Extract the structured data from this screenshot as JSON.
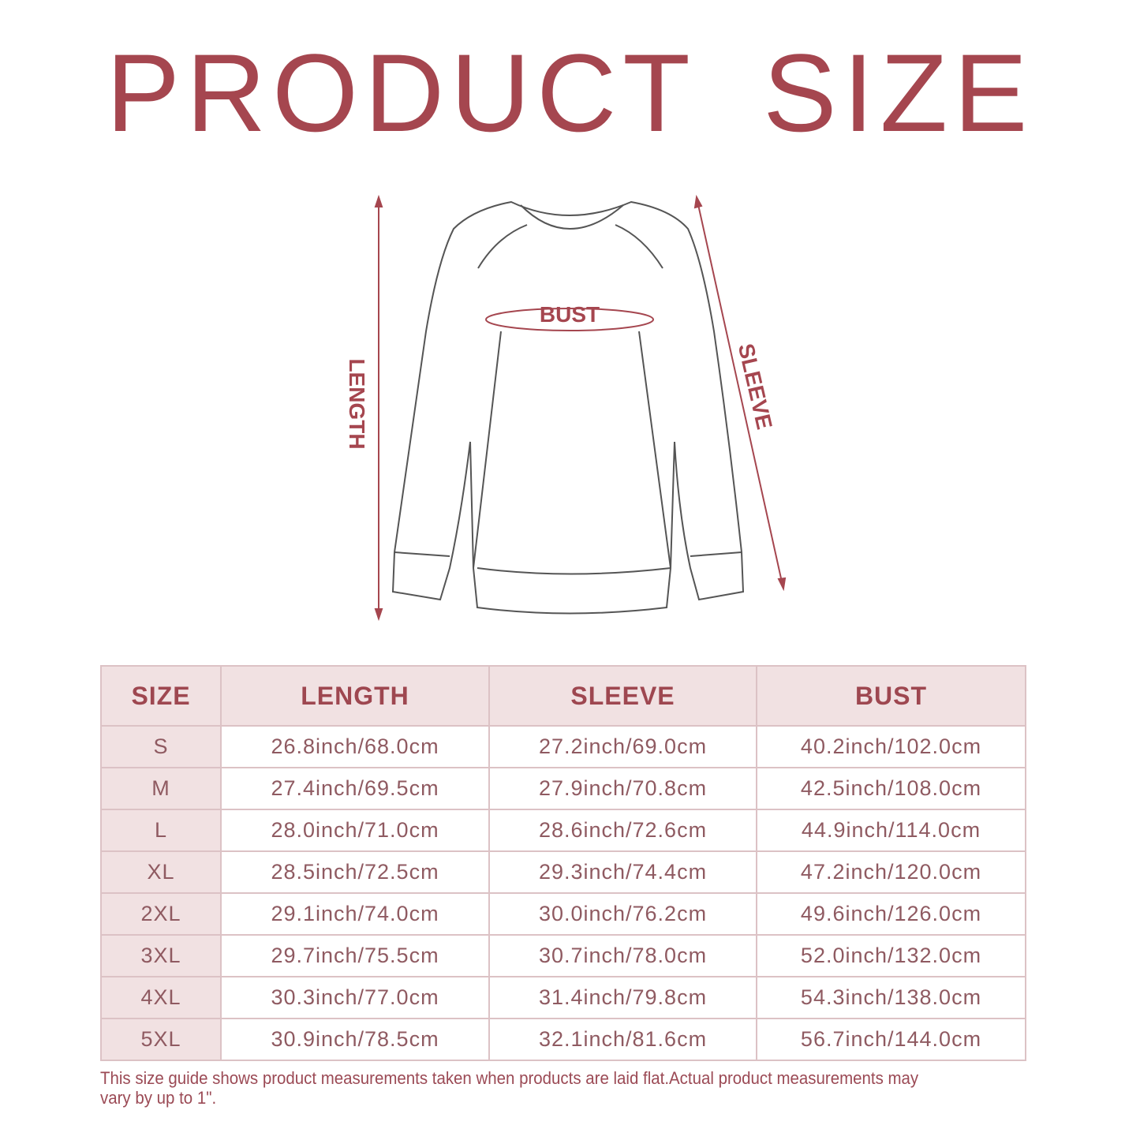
{
  "title": "PRODUCT SIZE",
  "diagram": {
    "length_label": "LENGTH",
    "sleeve_label": "SLEEVE",
    "bust_label": "BUST"
  },
  "colors": {
    "accent": "#a5464f",
    "header_bg": "#f1e1e2",
    "border": "#dcc2c5",
    "cell_text": "#8f5a61"
  },
  "table": {
    "headers": [
      "SIZE",
      "LENGTH",
      "SLEEVE",
      "BUST"
    ],
    "rows": [
      [
        "S",
        "26.8inch/68.0cm",
        "27.2inch/69.0cm",
        "40.2inch/102.0cm"
      ],
      [
        "M",
        "27.4inch/69.5cm",
        "27.9inch/70.8cm",
        "42.5inch/108.0cm"
      ],
      [
        "L",
        "28.0inch/71.0cm",
        "28.6inch/72.6cm",
        "44.9inch/114.0cm"
      ],
      [
        "XL",
        "28.5inch/72.5cm",
        "29.3inch/74.4cm",
        "47.2inch/120.0cm"
      ],
      [
        "2XL",
        "29.1inch/74.0cm",
        "30.0inch/76.2cm",
        "49.6inch/126.0cm"
      ],
      [
        "3XL",
        "29.7inch/75.5cm",
        "30.7inch/78.0cm",
        "52.0inch/132.0cm"
      ],
      [
        "4XL",
        "30.3inch/77.0cm",
        "31.4inch/79.8cm",
        "54.3inch/138.0cm"
      ],
      [
        "5XL",
        "30.9inch/78.5cm",
        "32.1inch/81.6cm",
        "56.7inch/144.0cm"
      ]
    ]
  },
  "note": "This size guide shows product measurements taken when products are laid flat.Actual product measurements may vary by up to 1\"."
}
